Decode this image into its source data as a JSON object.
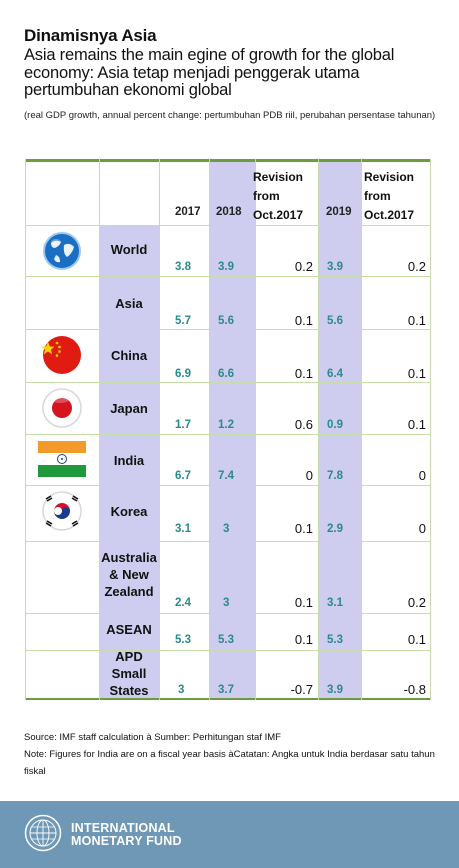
{
  "header": {
    "title": "Dinamisnya Asia",
    "subtitle": "Asia remains the main egine of growth for the global economy: Asia tetap menjadi penggerak utama pertumbuhan ekonomi global",
    "note": "(real GDP growth, annual percent change: pertumbuhan PDB riil, perubahan persentase tahunan)"
  },
  "table": {
    "col_2017": "2017",
    "col_2018": "2018",
    "col_rev18_l1": "Revision",
    "col_rev18_l2": "from",
    "col_rev18_l3": "Oct.2017",
    "col_2019": "2019",
    "col_rev19_l1": "Revision",
    "col_rev19_l2": "from",
    "col_rev19_l3": "Oct.2017",
    "rows": [
      {
        "l1": "World",
        "l2": "",
        "l3": "",
        "flag": "globe-icon",
        "y2017": "3.8",
        "y2018": "3.9",
        "rev18": "0.2",
        "y2019": "3.9",
        "rev19": "0.2"
      },
      {
        "l1": "Asia",
        "l2": "",
        "l3": "",
        "flag": "",
        "y2017": "5.7",
        "y2018": "5.6",
        "rev18": "0.1",
        "y2019": "5.6",
        "rev19": "0.1"
      },
      {
        "l1": "China",
        "l2": "",
        "l3": "",
        "flag": "china-flag-icon",
        "y2017": "6.9",
        "y2018": "6.6",
        "rev18": "0.1",
        "y2019": "6.4",
        "rev19": "0.1"
      },
      {
        "l1": "Japan",
        "l2": "",
        "l3": "",
        "flag": "japan-flag-icon",
        "y2017": "1.7",
        "y2018": "1.2",
        "rev18": "0.6",
        "y2019": "0.9",
        "rev19": "0.1"
      },
      {
        "l1": "India",
        "l2": "",
        "l3": "",
        "flag": "india-flag-icon",
        "y2017": "6.7",
        "y2018": "7.4",
        "rev18": "0",
        "y2019": "7.8",
        "rev19": "0"
      },
      {
        "l1": "Korea",
        "l2": "",
        "l3": "",
        "flag": "korea-flag-icon",
        "y2017": "3.1",
        "y2018": "3",
        "rev18": "0.1",
        "y2019": "2.9",
        "rev19": "0"
      },
      {
        "l1": "Australia",
        "l2": "& New",
        "l3": "Zealand",
        "flag": "",
        "y2017": "2.4",
        "y2018": "3",
        "rev18": "0.1",
        "y2019": "3.1",
        "rev19": "0.2"
      },
      {
        "l1": "ASEAN",
        "l2": "",
        "l3": "",
        "flag": "",
        "y2017": "5.3",
        "y2018": "5.3",
        "rev18": "0.1",
        "y2019": "5.3",
        "rev19": "0.1"
      },
      {
        "l1": "APD",
        "l2": "Small",
        "l3": "States",
        "flag": "",
        "y2017": "3",
        "y2018": "3.7",
        "rev18": "-0.7",
        "y2019": "3.9",
        "rev19": "-0.8"
      }
    ]
  },
  "footnotes": {
    "source": "Source: IMF staff calculation à Sumber: Perhitungan staf IMF",
    "note": "Note: Figures for India are on a fiscal year basis àCatatan: Angka untuk India berdasar satu tahun fiskal"
  },
  "footer": {
    "name_l1": "INTERNATIONAL",
    "name_l2": "MONETARY FUND",
    "logo": "imf-seal-icon",
    "color": "#6e98b6"
  },
  "colors": {
    "shade": "#cfcdef",
    "rule": "#6f9b3f",
    "number": "#2a8a8a"
  }
}
